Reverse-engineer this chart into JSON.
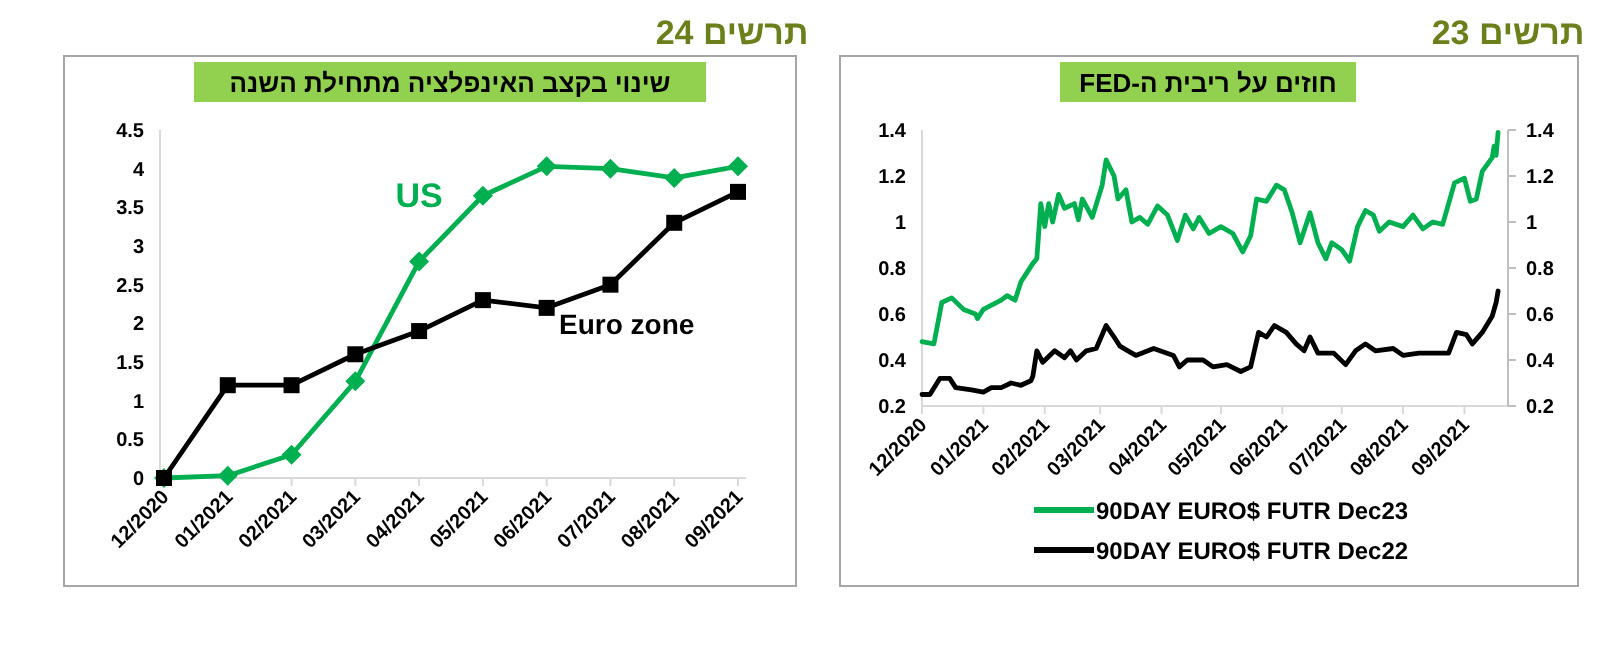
{
  "chart_data": [
    {
      "type": "line",
      "title": "תרשים 23",
      "subtitle": "חוזים על ריבית ה-FED",
      "xlim": [
        "2020-12-01",
        "2021-09-23"
      ],
      "xticks": [
        {
          "value": "2020-12-01",
          "label": "12/2020"
        },
        {
          "value": "2021-01-01",
          "label": "01/2021"
        },
        {
          "value": "2021-02-01",
          "label": "02/2021"
        },
        {
          "value": "2021-03-01",
          "label": "03/2021"
        },
        {
          "value": "2021-04-01",
          "label": "04/2021"
        },
        {
          "value": "2021-05-01",
          "label": "05/2021"
        },
        {
          "value": "2021-06-01",
          "label": "06/2021"
        },
        {
          "value": "2021-07-01",
          "label": "07/2021"
        },
        {
          "value": "2021-08-01",
          "label": "08/2021"
        },
        {
          "value": "2021-09-01",
          "label": "09/2021"
        }
      ],
      "ylim": [
        0.2,
        1.4
      ],
      "yticks": [
        0.2,
        0.4,
        0.6,
        0.8,
        1,
        1.2,
        1.4
      ],
      "y2lim": [
        0.2,
        1.4
      ],
      "y2ticks": [
        0.2,
        0.4,
        0.6,
        0.8,
        1,
        1.2,
        1.4
      ],
      "legend": "bottom",
      "grid": false,
      "marker": "none",
      "series": [
        {
          "name": "90DAY EURO$ FUTR  Dec23",
          "color": "#00b050",
          "x": [
            "2020-12-01",
            "2020-12-07",
            "2020-12-11",
            "2020-12-16",
            "2020-12-22",
            "2020-12-28",
            "2020-12-29",
            "2021-01-01",
            "2021-01-10",
            "2021-01-13",
            "2021-01-17",
            "2021-01-20",
            "2021-01-23",
            "2021-01-26",
            "2021-01-28",
            "2021-01-30",
            "2021-02-01",
            "2021-02-03",
            "2021-02-05",
            "2021-02-08",
            "2021-02-11",
            "2021-02-16",
            "2021-02-18",
            "2021-02-20",
            "2021-02-25",
            "2021-03-02",
            "2021-03-04",
            "2021-03-08",
            "2021-03-10",
            "2021-03-14",
            "2021-03-17",
            "2021-03-21",
            "2021-03-25",
            "2021-03-30",
            "2021-04-04",
            "2021-04-09",
            "2021-04-13",
            "2021-04-17",
            "2021-04-20",
            "2021-04-25",
            "2021-05-01",
            "2021-05-07",
            "2021-05-12",
            "2021-05-16",
            "2021-05-19",
            "2021-05-24",
            "2021-05-29",
            "2021-06-02",
            "2021-06-06",
            "2021-06-10",
            "2021-06-15",
            "2021-06-19",
            "2021-06-23",
            "2021-06-26",
            "2021-07-01",
            "2021-07-05",
            "2021-07-09",
            "2021-07-13",
            "2021-07-17",
            "2021-07-20",
            "2021-07-25",
            "2021-08-01",
            "2021-08-06",
            "2021-08-11",
            "2021-08-16",
            "2021-08-21",
            "2021-08-24",
            "2021-08-27",
            "2021-09-01",
            "2021-09-04",
            "2021-09-07",
            "2021-09-10",
            "2021-09-15",
            "2021-09-16",
            "2021-09-17",
            "2021-09-18"
          ],
          "values": [
            0.48,
            0.47,
            0.65,
            0.67,
            0.62,
            0.6,
            0.58,
            0.62,
            0.66,
            0.68,
            0.66,
            0.74,
            0.78,
            0.82,
            0.84,
            1.08,
            0.98,
            1.08,
            1.0,
            1.12,
            1.06,
            1.08,
            1.01,
            1.1,
            1.02,
            1.16,
            1.27,
            1.2,
            1.1,
            1.14,
            1.0,
            1.02,
            0.99,
            1.07,
            1.03,
            0.92,
            1.03,
            0.97,
            1.02,
            0.95,
            0.98,
            0.95,
            0.87,
            0.94,
            1.1,
            1.09,
            1.16,
            1.14,
            1.04,
            0.91,
            1.04,
            0.91,
            0.84,
            0.91,
            0.88,
            0.83,
            0.98,
            1.05,
            1.03,
            0.96,
            1.0,
            0.98,
            1.03,
            0.97,
            1.0,
            0.99,
            1.08,
            1.17,
            1.19,
            1.09,
            1.1,
            1.22,
            1.28,
            1.33,
            1.29,
            1.39
          ]
        },
        {
          "name": "90DAY EURO$ FUTR  Dec22",
          "color": "#000000",
          "x": [
            "2020-12-01",
            "2020-12-05",
            "2020-12-10",
            "2020-12-15",
            "2020-12-18",
            "2020-12-26",
            "2021-01-01",
            "2021-01-05",
            "2021-01-10",
            "2021-01-15",
            "2021-01-20",
            "2021-01-25",
            "2021-01-26",
            "2021-01-28",
            "2021-01-31",
            "2021-02-06",
            "2021-02-11",
            "2021-02-14",
            "2021-02-17",
            "2021-02-22",
            "2021-02-27",
            "2021-03-04",
            "2021-03-08",
            "2021-03-11",
            "2021-03-15",
            "2021-03-19",
            "2021-03-28",
            "2021-04-07",
            "2021-04-10",
            "2021-04-14",
            "2021-04-22",
            "2021-04-27",
            "2021-05-04",
            "2021-05-11",
            "2021-05-16",
            "2021-05-20",
            "2021-05-24",
            "2021-05-28",
            "2021-06-03",
            "2021-06-08",
            "2021-06-12",
            "2021-06-15",
            "2021-06-19",
            "2021-06-27",
            "2021-07-03",
            "2021-07-08",
            "2021-07-13",
            "2021-07-18",
            "2021-07-27",
            "2021-08-01",
            "2021-08-09",
            "2021-08-18",
            "2021-08-24",
            "2021-08-28",
            "2021-09-02",
            "2021-09-05",
            "2021-09-10",
            "2021-09-15",
            "2021-09-17",
            "2021-09-18"
          ],
          "values": [
            0.25,
            0.25,
            0.32,
            0.32,
            0.28,
            0.27,
            0.26,
            0.28,
            0.28,
            0.3,
            0.29,
            0.31,
            0.33,
            0.44,
            0.39,
            0.44,
            0.41,
            0.44,
            0.4,
            0.44,
            0.45,
            0.55,
            0.5,
            0.46,
            0.44,
            0.42,
            0.45,
            0.42,
            0.37,
            0.4,
            0.4,
            0.37,
            0.38,
            0.35,
            0.37,
            0.52,
            0.5,
            0.55,
            0.52,
            0.47,
            0.44,
            0.5,
            0.43,
            0.43,
            0.38,
            0.44,
            0.47,
            0.44,
            0.45,
            0.42,
            0.43,
            0.43,
            0.43,
            0.52,
            0.51,
            0.47,
            0.52,
            0.59,
            0.65,
            0.7
          ]
        }
      ]
    },
    {
      "type": "line",
      "title": "תרשים 24",
      "subtitle": "שינוי בקצב האינפלציה מתחילת השנה",
      "categories": [
        "12/2020",
        "01/2021",
        "02/2021",
        "03/2021",
        "04/2021",
        "05/2021",
        "06/2021",
        "07/2021",
        "08/2021",
        "09/2021"
      ],
      "ylim": [
        0,
        4.5
      ],
      "yticks": [
        0,
        0.5,
        1,
        1.5,
        2,
        2.5,
        3,
        3.5,
        4,
        4.5
      ],
      "legend": false,
      "grid": false,
      "series": [
        {
          "name": "US",
          "color": "#00b050",
          "marker": "diamond",
          "values": [
            0,
            0.03,
            0.3,
            1.25,
            2.8,
            3.65,
            4.03,
            4.0,
            3.88,
            4.03
          ]
        },
        {
          "name": "Euro zone",
          "color": "#000000",
          "marker": "square",
          "values": [
            0,
            1.2,
            1.2,
            1.6,
            1.9,
            2.3,
            2.2,
            2.5,
            3.3,
            3.7
          ]
        }
      ]
    }
  ]
}
